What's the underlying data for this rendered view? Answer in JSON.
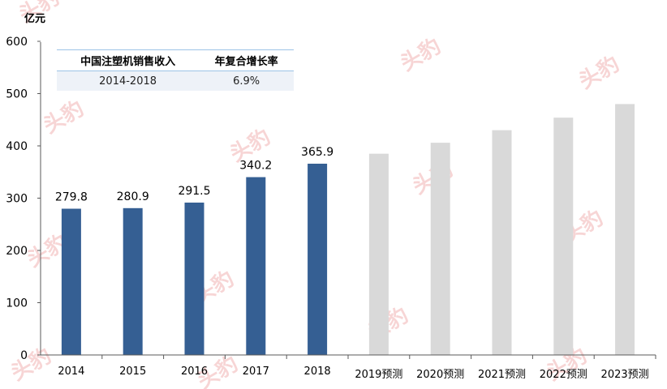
{
  "chart_data": {
    "type": "bar",
    "ylabel": "亿元",
    "ylim": [
      0,
      600
    ],
    "yticks": [
      0,
      100,
      200,
      300,
      400,
      500,
      600
    ],
    "categories": [
      "2014",
      "2015",
      "2016",
      "2017",
      "2018",
      "2019预测",
      "2020预测",
      "2021预测",
      "2022预测",
      "2023预测"
    ],
    "values": [
      279.8,
      280.9,
      291.5,
      340.2,
      365.9,
      385,
      406,
      430,
      454,
      480
    ],
    "data_labels": [
      "279.8",
      "280.9",
      "291.5",
      "340.2",
      "365.9",
      "",
      "",
      "",
      "",
      ""
    ],
    "colors": {
      "actual": "#355f93",
      "forecast": "#d9d9d9"
    },
    "grid": false
  },
  "table": {
    "headers": [
      "中国注塑机销售收入",
      "年复合增长率"
    ],
    "row": [
      "2014-2018",
      "6.9%"
    ]
  },
  "watermark": "头豹"
}
